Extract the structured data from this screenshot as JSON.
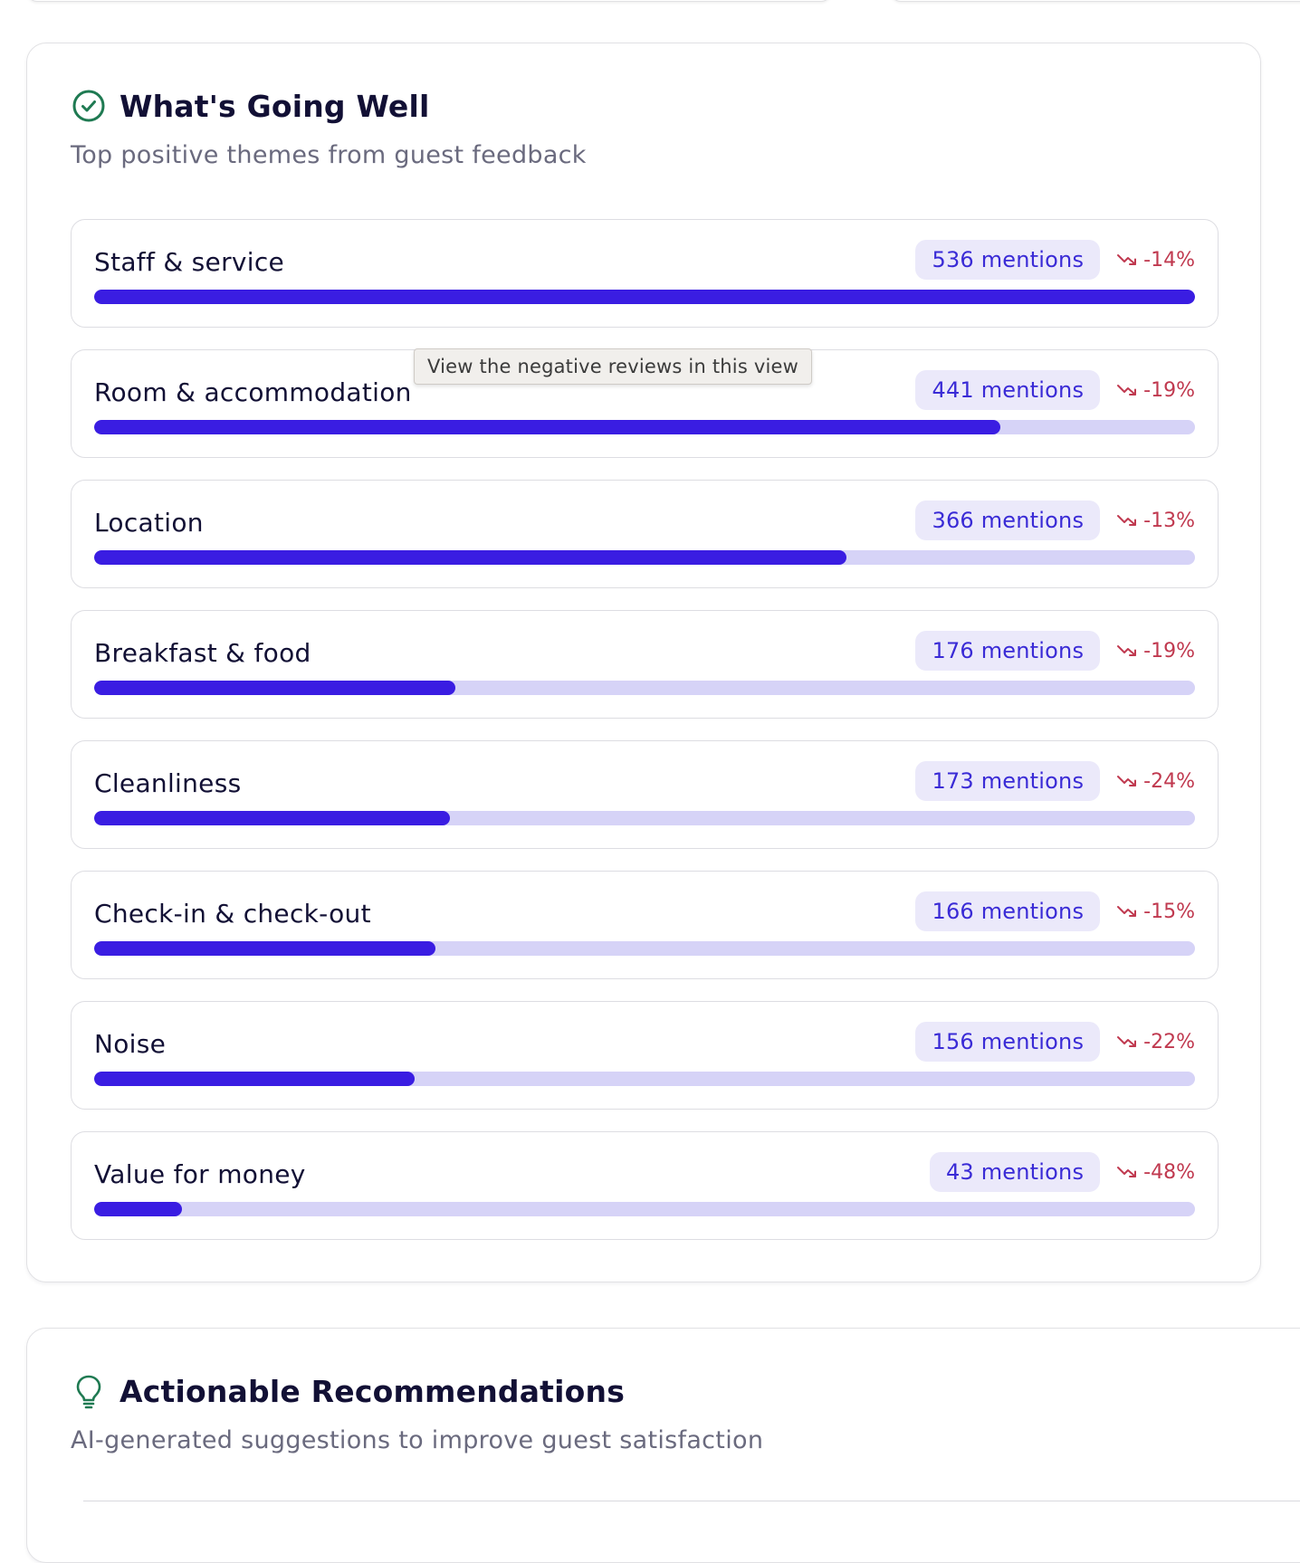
{
  "going_well": {
    "title": "What's Going Well",
    "subtitle": "Top positive themes from guest feedback",
    "themes": [
      {
        "name": "Staff & service",
        "mentions": "536 mentions",
        "trend": "-14%",
        "share": 1.0
      },
      {
        "name": "Room & accommodation",
        "mentions": "441 mentions",
        "trend": "-19%",
        "share": 0.823
      },
      {
        "name": "Location",
        "mentions": "366 mentions",
        "trend": "-13%",
        "share": 0.683
      },
      {
        "name": "Breakfast & food",
        "mentions": "176 mentions",
        "trend": "-19%",
        "share": 0.328
      },
      {
        "name": "Cleanliness",
        "mentions": "173 mentions",
        "trend": "-24%",
        "share": 0.323
      },
      {
        "name": "Check-in & check-out",
        "mentions": "166 mentions",
        "trend": "-15%",
        "share": 0.31
      },
      {
        "name": "Noise",
        "mentions": "156 mentions",
        "trend": "-22%",
        "share": 0.291
      },
      {
        "name": "Value for money",
        "mentions": "43 mentions",
        "trend": "-48%",
        "share": 0.08
      }
    ]
  },
  "tooltip": "View the negative reviews in this view",
  "recommendations": {
    "title": "Actionable Recommendations",
    "subtitle": "AI-generated suggestions to improve guest satisfaction"
  },
  "colors": {
    "bar_fill": "#3a1de2",
    "bar_track": "#d6d3f7",
    "mentions_bg": "#ebe9fa",
    "mentions_text": "#3a2bd6",
    "trend_down": "#c0394f",
    "success_icon": "#1f7a52"
  },
  "icons": {
    "going_well": "check-circle-icon",
    "recommendations": "lightbulb-icon",
    "trend": "trending-down-icon"
  }
}
